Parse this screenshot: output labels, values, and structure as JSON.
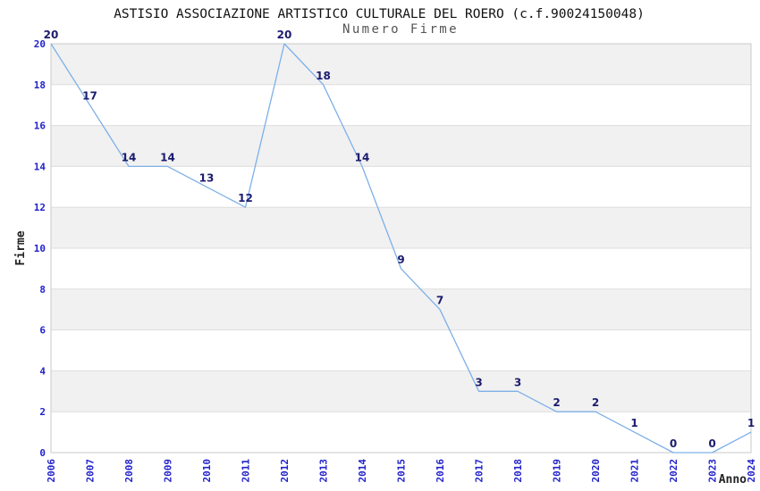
{
  "chart_data": {
    "type": "line",
    "title": "ASTISIO ASSOCIAZIONE ARTISTICO CULTURALE DEL ROERO (c.f.90024150048)",
    "subtitle": "Numero Firme",
    "xlabel": "Anno",
    "ylabel": "Firme",
    "x": [
      2006,
      2007,
      2008,
      2009,
      2010,
      2011,
      2012,
      2013,
      2014,
      2015,
      2016,
      2017,
      2018,
      2019,
      2020,
      2021,
      2022,
      2023,
      2024
    ],
    "values": [
      20,
      17,
      14,
      14,
      13,
      12,
      20,
      18,
      14,
      9,
      7,
      3,
      3,
      2,
      2,
      1,
      0,
      0,
      1
    ],
    "ylim": [
      0,
      20
    ],
    "ytick_step": 2,
    "data_labels": true,
    "legend": "none",
    "grid": "horizontal lines with alternating gray bands every 2 units",
    "colors": {
      "line": "#7db0e8",
      "band": "#f1f1f1",
      "gridline": "#dedede",
      "plot_border": "#c9c9c9",
      "tick_label": "#2222cc",
      "data_label": "#1b1b6e",
      "title": "#111111",
      "subtitle": "#555555",
      "axis_label": "#222222",
      "background": "#ffffff"
    }
  }
}
